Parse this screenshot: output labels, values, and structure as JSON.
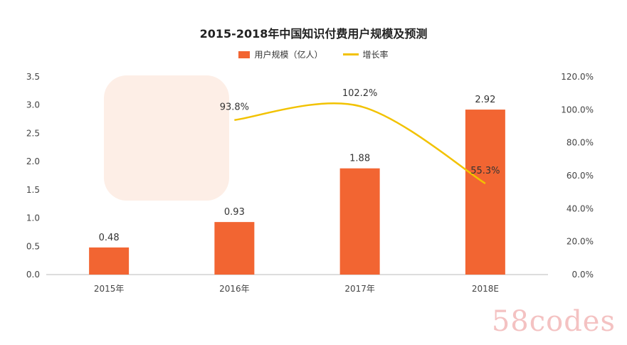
{
  "watermark_text": "58codes",
  "colors": {
    "bar": "#f26532",
    "line": "#f2c200",
    "axis": "#bbbbbb",
    "watermark_bg": "#fbe3d6"
  },
  "chart_data": {
    "type": "bar",
    "title": "2015-2018年中国知识付费用户规模及预测",
    "categories": [
      "2015年",
      "2016年",
      "2017年",
      "2018E"
    ],
    "series": [
      {
        "name": "用户规模（亿人）",
        "type": "bar",
        "axis": "left",
        "values": [
          0.48,
          0.93,
          1.88,
          2.92
        ],
        "labels": [
          "0.48",
          "0.93",
          "1.88",
          "2.92"
        ]
      },
      {
        "name": "增长率",
        "type": "line",
        "axis": "right",
        "values": [
          null,
          93.8,
          102.2,
          55.3
        ],
        "labels": [
          "",
          "93.8%",
          "102.2%",
          "55.3%"
        ]
      }
    ],
    "y_left": {
      "ylim": [
        0,
        3.5
      ],
      "ticks": [
        "0.0",
        "0.5",
        "1.0",
        "1.5",
        "2.0",
        "2.5",
        "3.0",
        "3.5"
      ]
    },
    "y_right": {
      "ylim": [
        0,
        120
      ],
      "ticks": [
        "0.0%",
        "20.0%",
        "40.0%",
        "60.0%",
        "80.0%",
        "100.0%",
        "120.0%"
      ]
    },
    "grid": false,
    "legend_position": "top-center"
  }
}
